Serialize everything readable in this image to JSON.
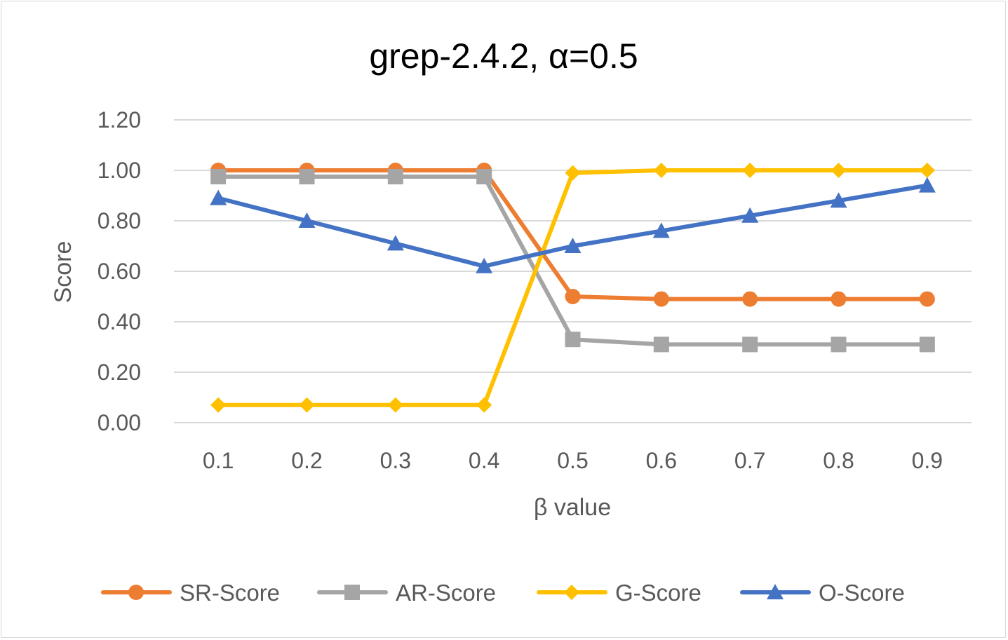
{
  "chart_data": {
    "type": "line",
    "title": "grep-2.4.2, α=0.5",
    "xlabel": "β value",
    "ylabel": "Score",
    "categories": [
      "0.1",
      "0.2",
      "0.3",
      "0.4",
      "0.5",
      "0.6",
      "0.7",
      "0.8",
      "0.9"
    ],
    "y_ticks": [
      "0.00",
      "0.20",
      "0.40",
      "0.60",
      "0.80",
      "1.00",
      "1.20"
    ],
    "ylim": [
      0,
      1.2
    ],
    "grid": "horizontal",
    "legend_position": "bottom",
    "series": [
      {
        "name": "SR-Score",
        "color": "#ED7D31",
        "marker": "circle",
        "values": [
          1.0,
          1.0,
          1.0,
          1.0,
          0.5,
          0.49,
          0.49,
          0.49,
          0.49
        ]
      },
      {
        "name": "AR-Score",
        "color": "#A5A5A5",
        "marker": "square",
        "values": [
          0.975,
          0.975,
          0.975,
          0.975,
          0.33,
          0.31,
          0.31,
          0.31,
          0.31
        ]
      },
      {
        "name": "G-Score",
        "color": "#FFC000",
        "marker": "diamond",
        "values": [
          0.07,
          0.07,
          0.07,
          0.07,
          0.99,
          1.0,
          1.0,
          1.0,
          1.0
        ]
      },
      {
        "name": "O-Score",
        "color": "#4472C4",
        "marker": "triangle",
        "values": [
          0.89,
          0.8,
          0.71,
          0.62,
          0.7,
          0.76,
          0.82,
          0.88,
          0.94
        ]
      }
    ]
  }
}
